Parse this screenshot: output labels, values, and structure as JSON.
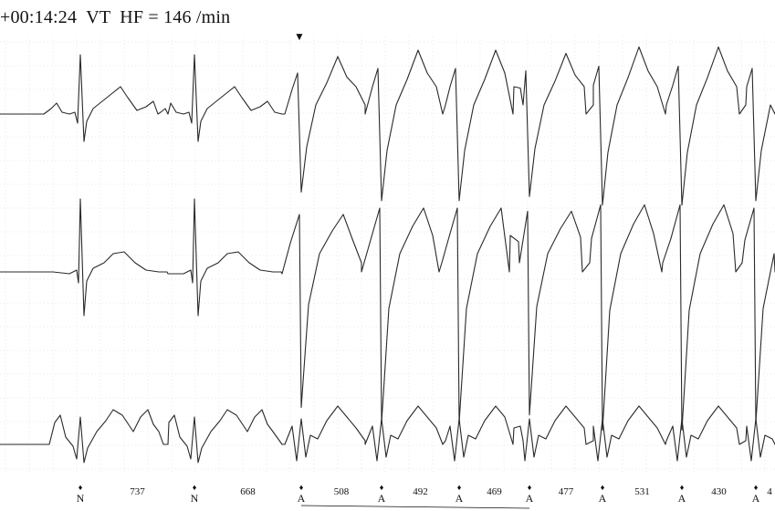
{
  "header": {
    "time": "+00:14:24",
    "rhythm_label": "VT",
    "heart_rate": "HF = 146 /min"
  },
  "onset_marker": "▼",
  "chart_data": {
    "type": "line",
    "title": "",
    "leads": 3,
    "grid": true,
    "beats": [
      {
        "label": "N",
        "morphology": "narrow"
      },
      {
        "label": "N",
        "morphology": "narrow"
      },
      {
        "label": "A",
        "morphology": "wide"
      },
      {
        "label": "A",
        "morphology": "wide"
      },
      {
        "label": "A",
        "morphology": "wide"
      },
      {
        "label": "A",
        "morphology": "wide"
      },
      {
        "label": "A",
        "morphology": "wide"
      },
      {
        "label": "A",
        "morphology": "wide"
      },
      {
        "label": "A",
        "morphology": "wide"
      }
    ],
    "rr_intervals_ms": [
      "737",
      "668",
      "508",
      "492",
      "469",
      "477",
      "531",
      "430",
      "4"
    ],
    "annotation_bracket": {
      "from_beat": 3,
      "to_beat": 6
    }
  },
  "colors": {
    "trace": "#2a2a2a",
    "grid": "#d4d4d4",
    "background": "#ffffff"
  }
}
